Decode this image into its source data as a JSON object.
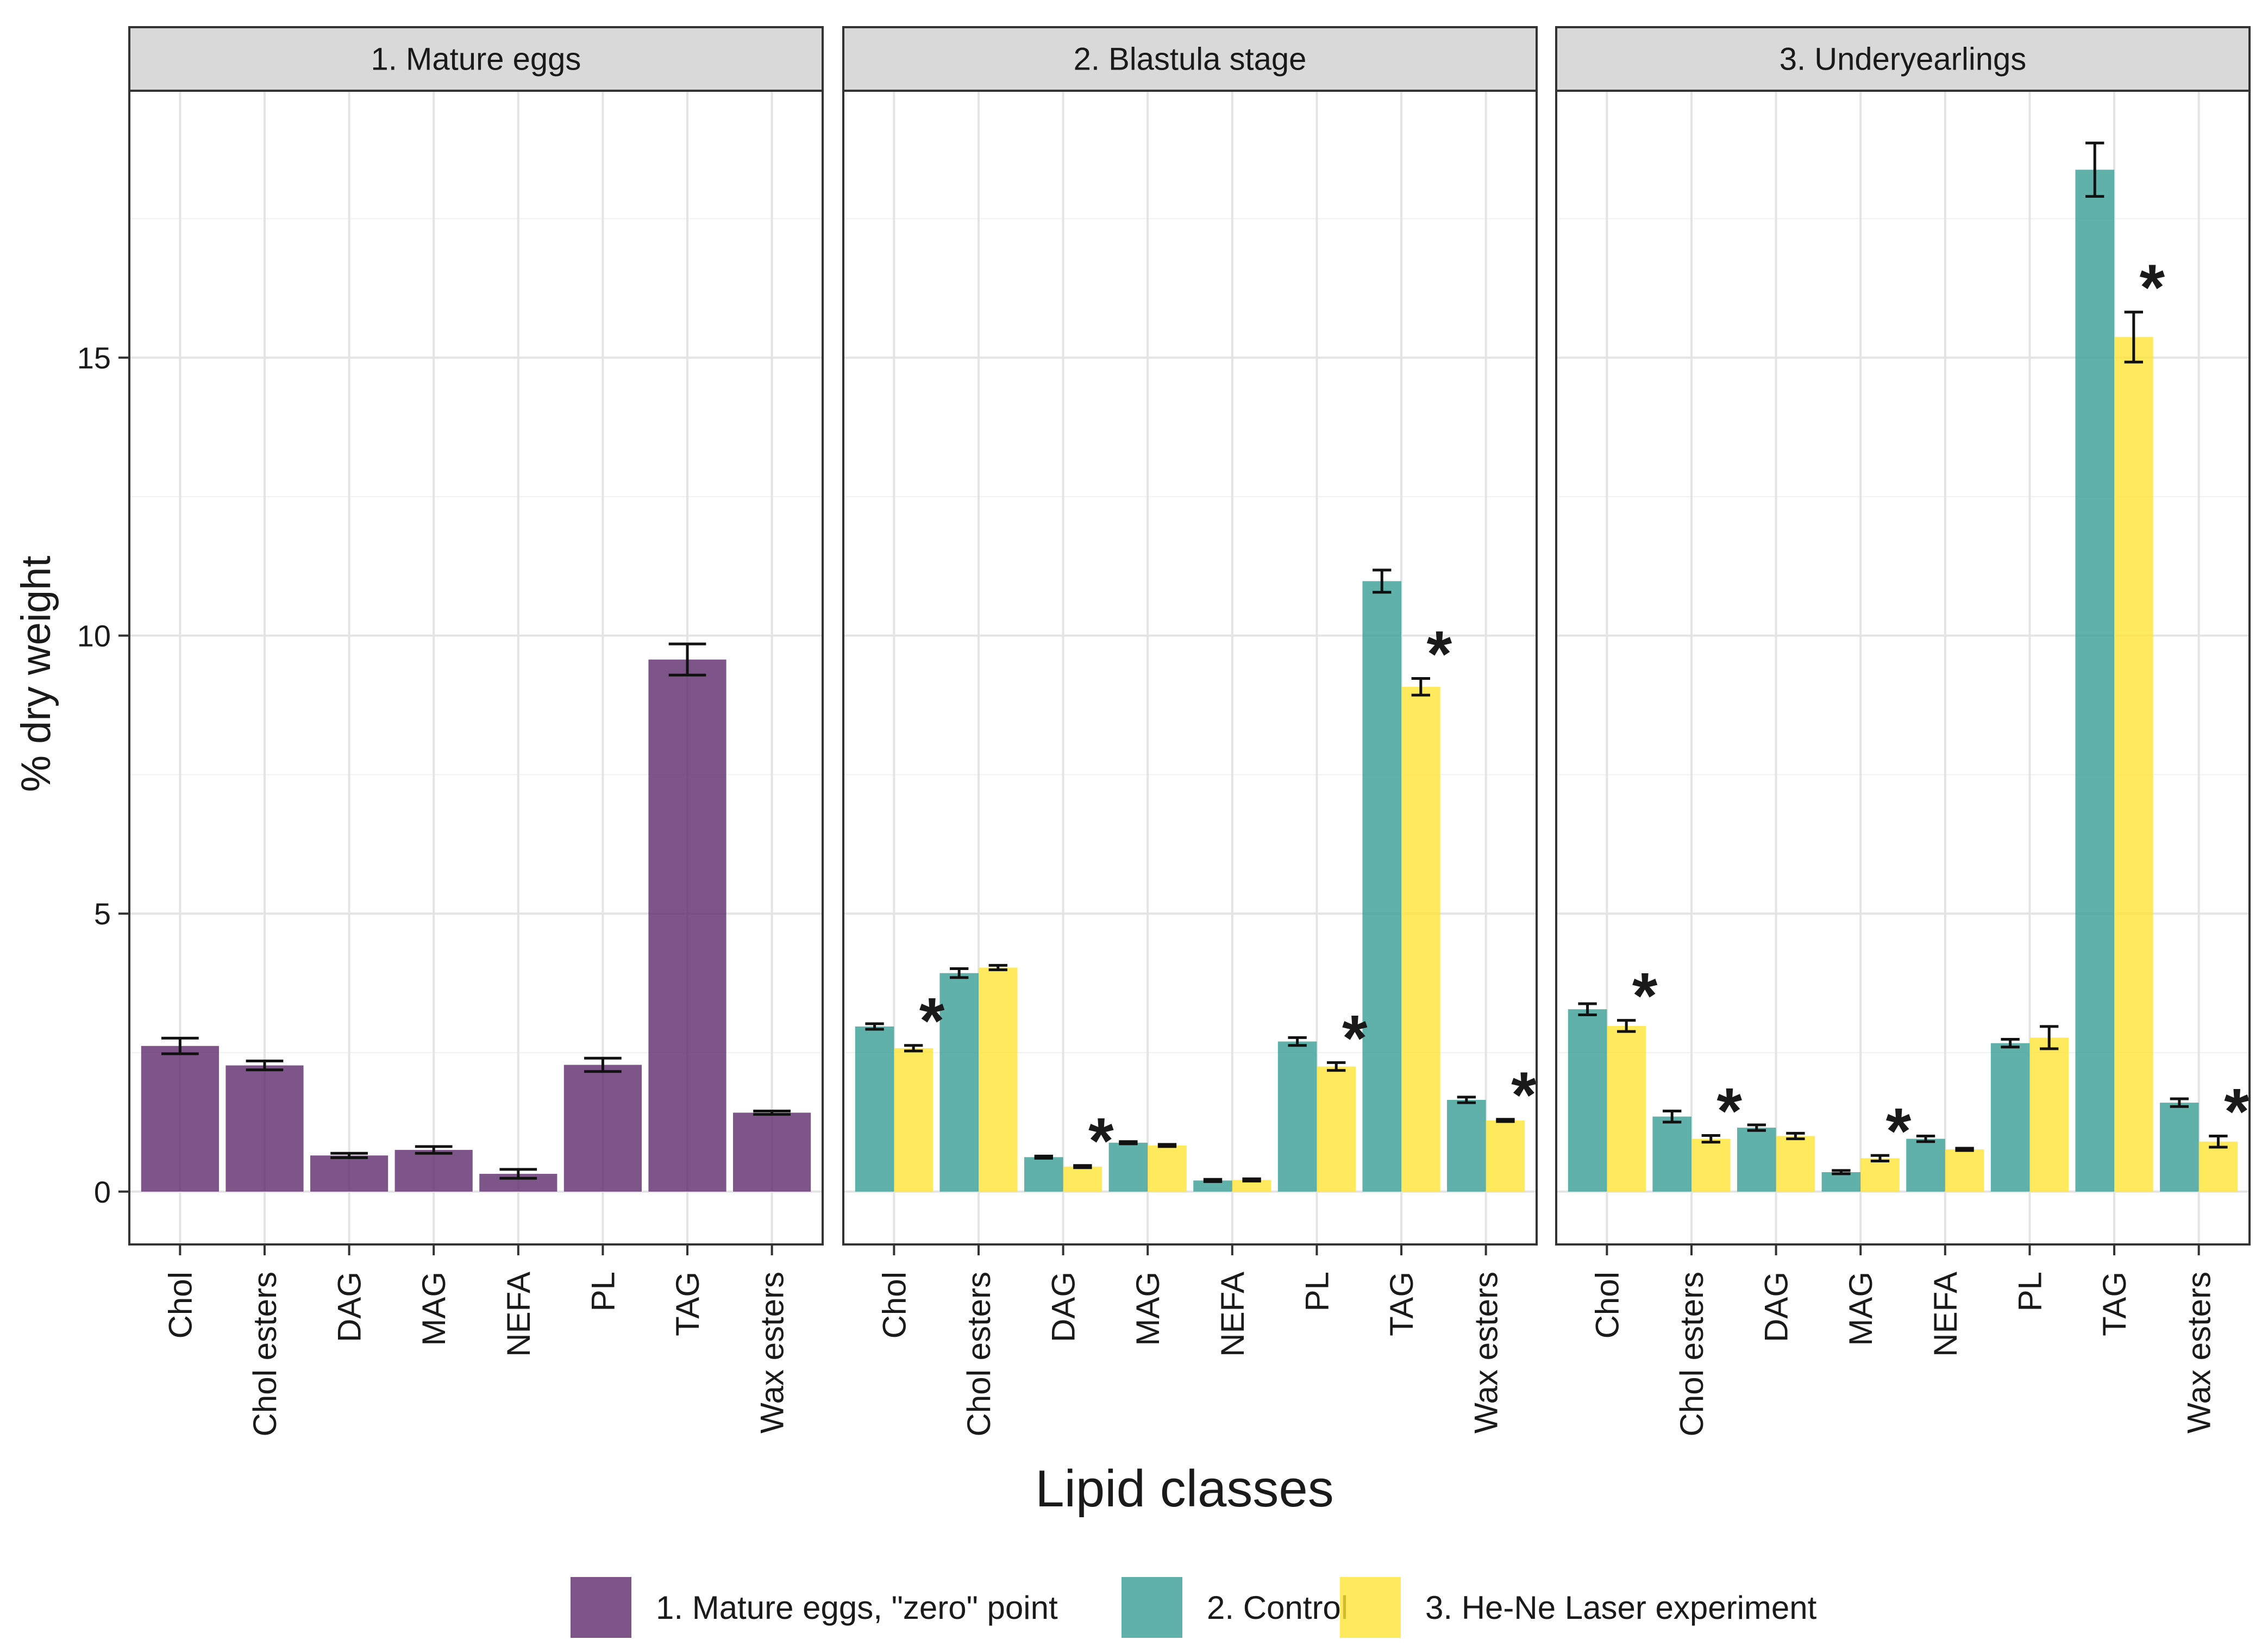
{
  "chart_data": {
    "type": "bar",
    "ylabel": "% dry weight",
    "xlabel": "Lipid classes",
    "ylim": [
      -0.95,
      19.8
    ],
    "yticks": [
      0,
      5,
      10,
      15
    ],
    "categories": [
      "Chol",
      "Chol esters",
      "DAG",
      "MAG",
      "NEFA",
      "PL",
      "TAG",
      "Wax esters"
    ],
    "significance_marker": "*",
    "legend": [
      {
        "name": "1. Mature eggs, \"zero\" point",
        "color": "#5d2a6b"
      },
      {
        "name": "2. Control",
        "color": "#3a9e96"
      },
      {
        "name": "3. He-Ne Laser experiment",
        "color": "#ffe335"
      }
    ],
    "legend_position": "bottom",
    "panels": [
      {
        "title": "1. Mature eggs",
        "series": [
          {
            "name": "1. Mature eggs, \"zero\" point",
            "color": "#5d2a6b",
            "values": [
              2.62,
              2.27,
              0.65,
              0.75,
              0.32,
              2.28,
              9.57,
              1.42
            ],
            "errors": [
              0.14,
              0.08,
              0.04,
              0.06,
              0.08,
              0.12,
              0.28,
              0.03
            ],
            "significant": [
              false,
              false,
              false,
              false,
              false,
              false,
              false,
              false
            ]
          }
        ]
      },
      {
        "title": "2. Blastula stage",
        "series": [
          {
            "name": "2. Control",
            "color": "#3a9e96",
            "values": [
              2.97,
              3.93,
              0.62,
              0.88,
              0.2,
              2.7,
              10.98,
              1.65
            ],
            "errors": [
              0.05,
              0.08,
              0.02,
              0.02,
              0.02,
              0.07,
              0.2,
              0.05
            ],
            "significant": [
              false,
              false,
              false,
              false,
              false,
              false,
              false,
              false
            ]
          },
          {
            "name": "3. He-Ne Laser experiment",
            "color": "#ffe335",
            "values": [
              2.58,
              4.03,
              0.45,
              0.83,
              0.21,
              2.25,
              9.08,
              1.28
            ],
            "errors": [
              0.05,
              0.04,
              0.02,
              0.02,
              0.02,
              0.07,
              0.15,
              0.02
            ],
            "significant": [
              true,
              false,
              true,
              false,
              false,
              true,
              true,
              true
            ]
          }
        ]
      },
      {
        "title": "3. Underyearlings",
        "series": [
          {
            "name": "2. Control",
            "color": "#3a9e96",
            "values": [
              3.28,
              1.35,
              1.15,
              0.35,
              0.95,
              2.67,
              18.38,
              1.6
            ],
            "errors": [
              0.1,
              0.1,
              0.05,
              0.03,
              0.05,
              0.07,
              0.48,
              0.07
            ],
            "significant": [
              false,
              false,
              false,
              false,
              false,
              false,
              false,
              false
            ]
          },
          {
            "name": "3. He-Ne Laser experiment",
            "color": "#ffe335",
            "values": [
              2.98,
              0.95,
              1.0,
              0.6,
              0.76,
              2.77,
              15.37,
              0.9
            ],
            "errors": [
              0.1,
              0.06,
              0.05,
              0.05,
              0.02,
              0.2,
              0.45,
              0.1
            ],
            "significant": [
              true,
              true,
              false,
              true,
              false,
              false,
              true,
              true
            ]
          }
        ]
      }
    ]
  }
}
